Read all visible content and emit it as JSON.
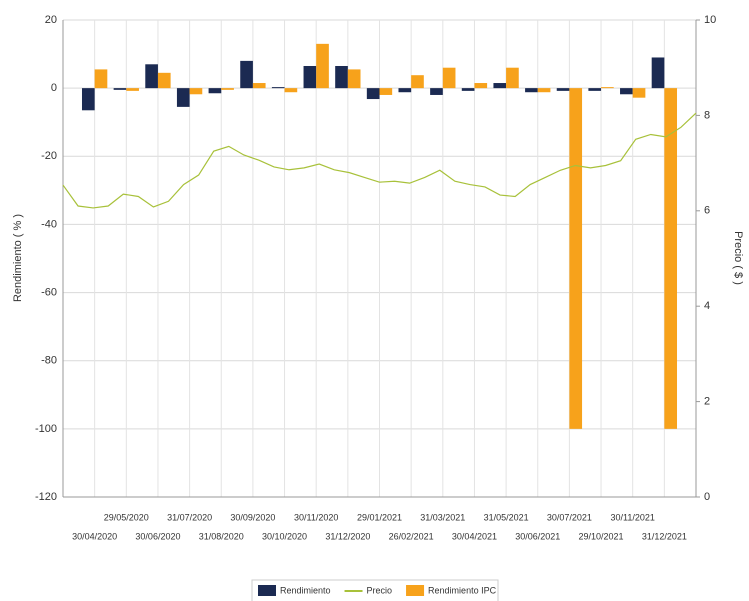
{
  "chart_data": [
    {
      "type": "bar",
      "categories": [
        "30/04/2020",
        "29/05/2020",
        "30/06/2020",
        "31/07/2020",
        "31/08/2020",
        "30/09/2020",
        "30/10/2020",
        "30/11/2020",
        "31/12/2020",
        "29/01/2021",
        "26/02/2021",
        "31/03/2021",
        "30/04/2021",
        "31/05/2021",
        "30/06/2021",
        "30/07/2021",
        "29/10/2021",
        "30/11/2021",
        "31/12/2021"
      ],
      "series": [
        {
          "name": "Rendimiento",
          "color": "#1b2a52",
          "values": [
            -6.5,
            -0.5,
            7,
            -5.5,
            -1.5,
            8,
            0.3,
            6.5,
            6.5,
            -3.2,
            -1.2,
            -2,
            -0.8,
            1.5,
            -1.2,
            -0.8,
            -0.8,
            -1.8,
            9
          ]
        },
        {
          "name": "Rendimiento IPC",
          "color": "#f7a21b",
          "values": [
            5.5,
            -0.8,
            4.5,
            -1.8,
            -0.5,
            1.5,
            -1.2,
            13,
            5.5,
            -2,
            3.8,
            6,
            1.5,
            6,
            -1.2,
            -100,
            0.3,
            -2.8,
            -100
          ]
        }
      ],
      "y_label": "Rendimiento ( % )",
      "ylim": [
        -120,
        20
      ],
      "yticks": [
        20,
        0,
        -20,
        -40,
        -60,
        -80,
        -100,
        -120
      ],
      "grid": true
    },
    {
      "type": "line",
      "series": [
        {
          "name": "Precio",
          "color": "#a8c13a",
          "values": [
            6.54,
            6.1,
            6.06,
            6.1,
            6.35,
            6.3,
            6.08,
            6.2,
            6.55,
            6.75,
            7.25,
            7.35,
            7.17,
            7.06,
            6.92,
            6.86,
            6.9,
            6.98,
            6.86,
            6.8,
            6.7,
            6.6,
            6.62,
            6.58,
            6.7,
            6.85,
            6.62,
            6.55,
            6.5,
            6.33,
            6.3,
            6.55,
            6.7,
            6.85,
            6.95,
            6.9,
            6.95,
            7.05,
            7.5,
            7.6,
            7.55,
            7.75,
            8.05
          ]
        }
      ],
      "y_label": "Precio ( $ )",
      "ylim": [
        0,
        10
      ],
      "yticks": [
        10,
        8,
        6,
        4,
        2,
        0
      ]
    }
  ]
}
